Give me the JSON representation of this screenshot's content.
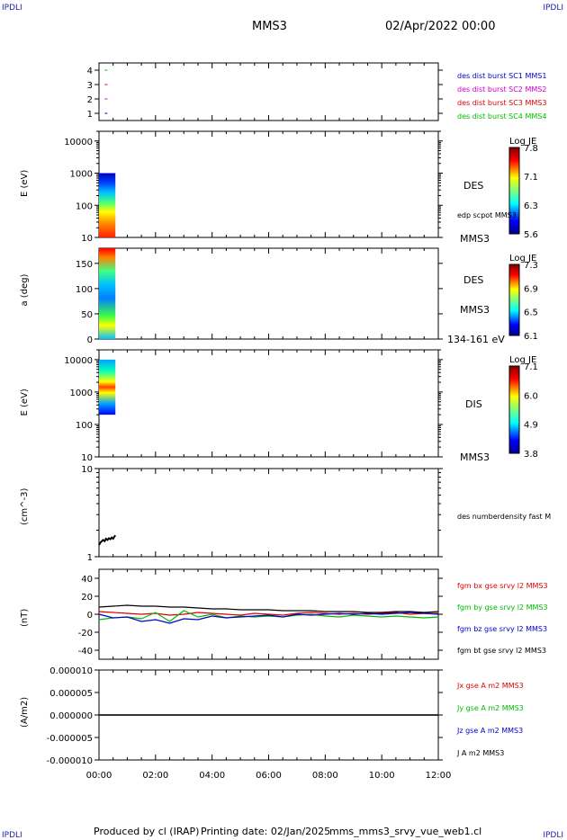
{
  "header": {
    "corner_tl": "IPDLI",
    "corner_tr": "IPDLI",
    "corner_bl": "IPDLI",
    "corner_br": "IPDLI",
    "spacecraft": "MMS3",
    "date": "02/Apr/2022 00:00"
  },
  "footer": {
    "produced": "Produced by cl (IRAP)",
    "printing": "Printing date: 02/Jan/2025",
    "file": "mms_mms3_srvy_vue_web1.cl"
  },
  "colors": {
    "c1": "#0000cc",
    "c2": "#cc00cc",
    "c3": "#dd0000",
    "c4": "#00bb00",
    "black": "#000000"
  },
  "chart_data": [
    {
      "type": "scatter",
      "id": "burst",
      "ylim": [
        0.5,
        4.5
      ],
      "y_ticks": [
        "1",
        "2",
        "3",
        "4"
      ],
      "legend": [
        "des dist burst SC1 MMS1",
        "des dist burst SC2 MMS2",
        "des dist burst SC3 MMS3",
        "des dist burst SC4 MMS4"
      ],
      "legend_colors": [
        "#0000cc",
        "#cc00cc",
        "#dd0000",
        "#00bb00"
      ],
      "points": [
        {
          "x": 0.25,
          "y": 4,
          "color": "#00bb00"
        },
        {
          "x": 0.25,
          "y": 3,
          "color": "#dd0000"
        },
        {
          "x": 0.25,
          "y": 2,
          "color": "#cc00cc"
        },
        {
          "x": 0.25,
          "y": 1,
          "color": "#0000cc"
        }
      ]
    },
    {
      "type": "heatmap",
      "id": "des_energy",
      "ylabel": "E (eV)",
      "y_scale": "log",
      "ylim": [
        10,
        20000
      ],
      "y_ticks": [
        "10",
        "100",
        "1000",
        "10000"
      ],
      "x_range_data": [
        0.0,
        0.58
      ],
      "y_range_data": [
        10,
        1000
      ],
      "colormap": "jet_low_at_bottom_hot_at_low_energy",
      "labels_right": [
        "DES",
        "edp scpot MMS3",
        "MMS3"
      ],
      "colorbar": {
        "title": "Log JE",
        "ticks": [
          "7.8",
          "7.1",
          "6.3",
          "5.6"
        ]
      }
    },
    {
      "type": "heatmap",
      "id": "des_pitch",
      "ylabel": "a (deg)",
      "ylim": [
        0,
        180
      ],
      "y_ticks": [
        "0",
        "50",
        "100",
        "150"
      ],
      "x_range_data": [
        0.0,
        0.58
      ],
      "y_range_data": [
        0,
        180
      ],
      "labels_right": [
        "DES",
        "MMS3",
        "134-161 eV"
      ],
      "colorbar": {
        "title": "Log JE",
        "ticks": [
          "7.3",
          "6.9",
          "6.5",
          "6.1"
        ]
      }
    },
    {
      "type": "heatmap",
      "id": "dis_energy",
      "ylabel": "E (eV)",
      "y_scale": "log",
      "ylim": [
        10,
        20000
      ],
      "y_ticks": [
        "10",
        "100",
        "1000",
        "10000"
      ],
      "x_range_data": [
        0.0,
        0.58
      ],
      "y_range_data": [
        200,
        10000
      ],
      "labels_right": [
        "DIS",
        "MMS3"
      ],
      "colorbar": {
        "title": "Log JE",
        "ticks": [
          "7.1",
          "6.0",
          "4.9",
          "3.8"
        ]
      }
    },
    {
      "type": "line",
      "id": "density",
      "ylabel": "(cm^-3)",
      "y_scale": "log",
      "ylim": [
        1,
        10
      ],
      "y_ticks": [
        "1",
        "10"
      ],
      "series": [
        {
          "name": "des numberdensity fast M",
          "color": "#000000",
          "x": [
            0.0,
            0.05,
            0.1,
            0.15,
            0.2,
            0.25,
            0.3,
            0.35,
            0.4,
            0.45,
            0.5,
            0.55,
            0.58
          ],
          "y": [
            1.35,
            1.45,
            1.5,
            1.55,
            1.5,
            1.6,
            1.55,
            1.62,
            1.58,
            1.65,
            1.6,
            1.7,
            1.75
          ]
        }
      ]
    },
    {
      "type": "line",
      "id": "fgm",
      "ylabel": "(nT)",
      "ylim": [
        -50,
        50
      ],
      "y_ticks": [
        "-40",
        "-20",
        "0",
        "20",
        "40"
      ],
      "x": [
        0,
        0.5,
        1,
        1.5,
        2,
        2.5,
        3,
        3.5,
        4,
        4.5,
        5,
        5.5,
        6,
        6.5,
        7,
        7.5,
        8,
        8.5,
        9,
        9.5,
        10,
        10.5,
        11,
        11.5,
        12
      ],
      "series": [
        {
          "name": "fgm bx gse srvy l2 MMS3",
          "color": "#dd0000",
          "y": [
            3,
            2,
            1,
            0,
            1,
            -1,
            0,
            2,
            1,
            0,
            -1,
            1,
            0,
            -1,
            1,
            2,
            1,
            0,
            1,
            0,
            1,
            2,
            0,
            1,
            1
          ]
        },
        {
          "name": "fgm by gse srvy l2 MMS3",
          "color": "#00bb00",
          "y": [
            -6,
            -4,
            -3,
            -5,
            2,
            -8,
            4,
            -3,
            0,
            -4,
            -2,
            -3,
            -2,
            -3,
            -1,
            0,
            -2,
            -3,
            -1,
            -2,
            -3,
            -2,
            -3,
            -4,
            -3
          ]
        },
        {
          "name": "fgm bz gse srvy l2 MMS3",
          "color": "#0000cc",
          "y": [
            0,
            -4,
            -3,
            -8,
            -6,
            -10,
            -5,
            -6,
            -2,
            -4,
            -3,
            -2,
            -1,
            -3,
            0,
            -1,
            0,
            1,
            0,
            1,
            0,
            1,
            2,
            1,
            0
          ]
        },
        {
          "name": "fgm bt gse srvy l2 MMS3",
          "color": "#000000",
          "y": [
            8,
            9,
            10,
            9,
            9,
            8,
            8,
            7,
            6,
            6,
            5,
            5,
            5,
            4,
            4,
            4,
            3,
            3,
            3,
            2,
            2,
            3,
            3,
            2,
            3
          ]
        }
      ]
    },
    {
      "type": "line",
      "id": "current",
      "ylabel": "(A/m2)",
      "ylim": [
        -1e-05,
        1e-05
      ],
      "y_ticks": [
        "-0.000010",
        "-0.000005",
        "0.000000",
        "0.000005",
        "0.000010"
      ],
      "series": [
        {
          "name": "Jx gse A m2 MMS3",
          "color": "#dd0000",
          "x": [
            0,
            12
          ],
          "y": [
            0,
            0
          ]
        },
        {
          "name": "Jy gse A m2 MMS3",
          "color": "#00bb00",
          "x": [
            0,
            12
          ],
          "y": [
            0,
            0
          ]
        },
        {
          "name": "Jz gse A m2 MMS3",
          "color": "#0000cc",
          "x": [
            0,
            12
          ],
          "y": [
            0,
            0
          ]
        },
        {
          "name": "J A m2 MMS3",
          "color": "#000000",
          "x": [
            0,
            12
          ],
          "y": [
            0,
            0
          ]
        }
      ]
    }
  ],
  "x_axis": {
    "xlim": [
      0,
      12
    ],
    "tick_labels": [
      "00:00",
      "02:00",
      "04:00",
      "06:00",
      "08:00",
      "10:00",
      "12:00"
    ]
  }
}
